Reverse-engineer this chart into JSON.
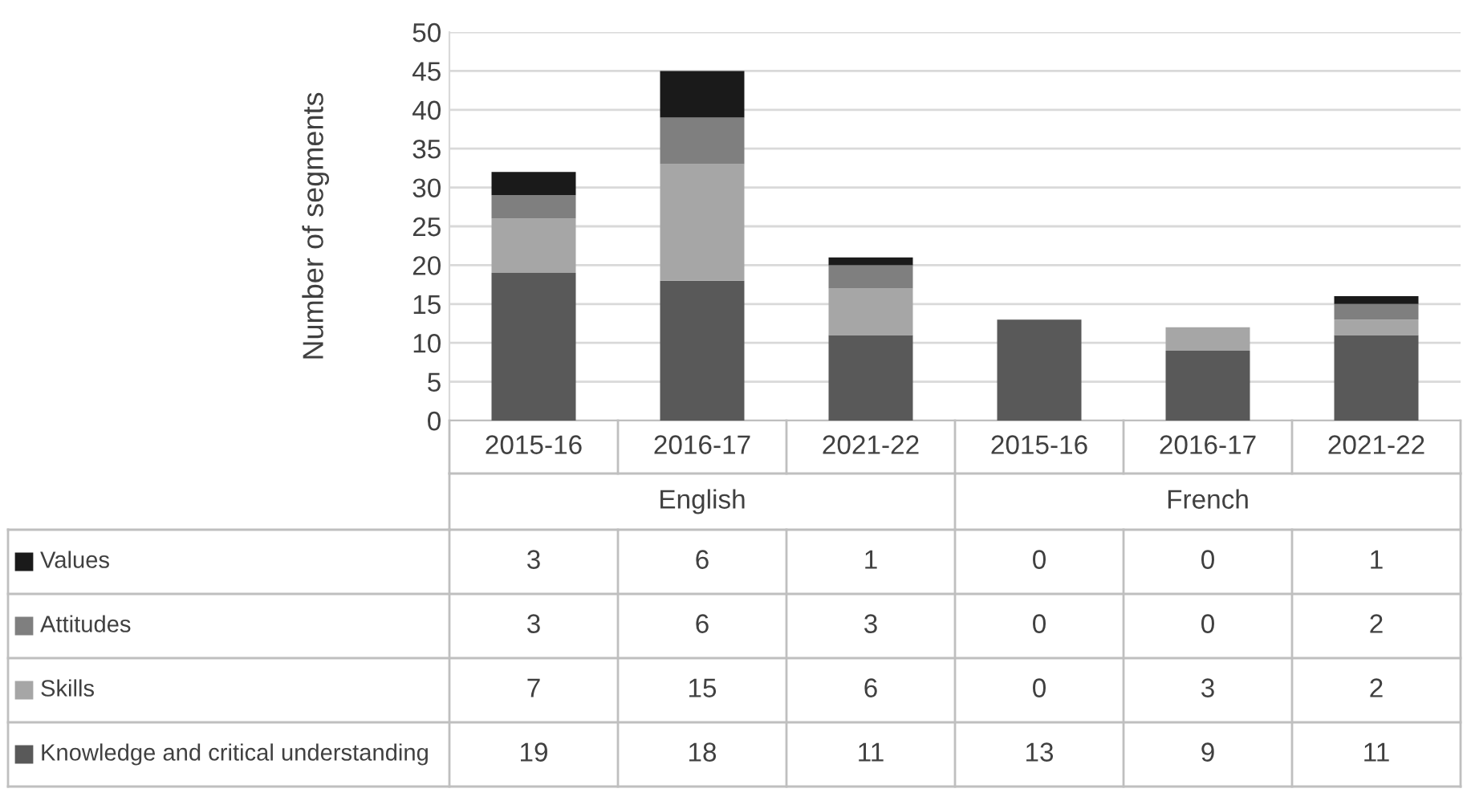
{
  "chart_data": {
    "type": "bar",
    "stacked": true,
    "ylabel": "Number of segments",
    "categories": [
      "2015-16",
      "2016-17",
      "2021-22",
      "2015-16",
      "2016-17",
      "2021-22"
    ],
    "annotations": [
      "English",
      "French"
    ],
    "series": [
      {
        "name": "Knowledge and critical understanding",
        "color": "#595959",
        "values": [
          19,
          18,
          11,
          13,
          9,
          11
        ]
      },
      {
        "name": "Skills",
        "color": "#a6a6a6",
        "values": [
          7,
          15,
          6,
          0,
          3,
          2
        ]
      },
      {
        "name": "Attitudes",
        "color": "#7f7f7f",
        "values": [
          3,
          6,
          3,
          0,
          0,
          2
        ]
      },
      {
        "name": "Values",
        "color": "#1a1a1a",
        "values": [
          3,
          6,
          1,
          0,
          0,
          1
        ]
      }
    ],
    "ylim": [
      0,
      50
    ],
    "yticks": [
      0,
      5,
      10,
      15,
      20,
      25,
      30,
      35,
      40,
      45,
      50
    ],
    "grid": "y",
    "data_labels": true,
    "legend": "bottom left"
  }
}
